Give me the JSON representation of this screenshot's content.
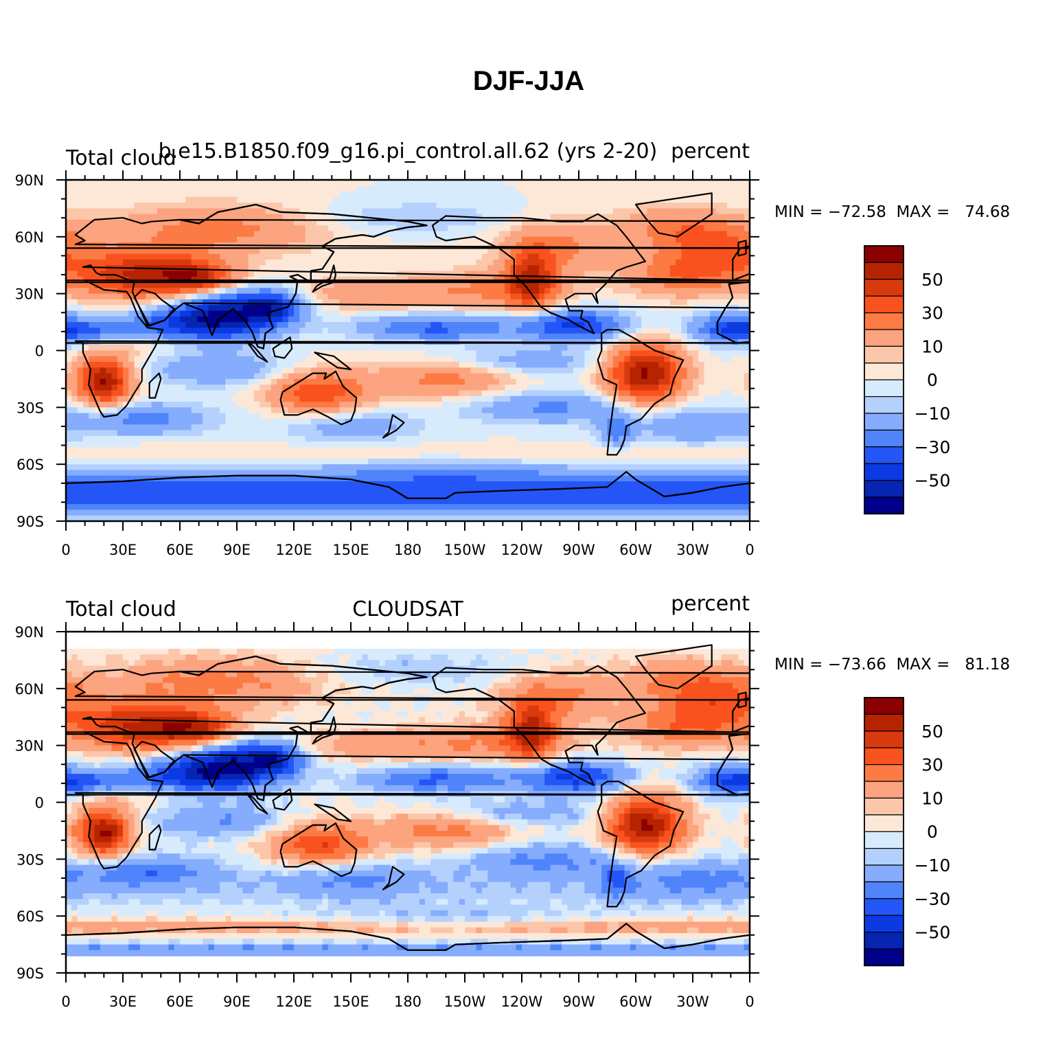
{
  "figure_title": "DJF-JJA",
  "panels": [
    {
      "left_title": "Total cloud",
      "center_title": "b.e15.B1850.f09_g16.pi_control.all.62 (yrs 2-20)",
      "right_title": "percent",
      "min_max_text": "MIN = −72.58  MAX =   74.68",
      "data_lat_range": [
        -90,
        90
      ]
    },
    {
      "left_title": "Total cloud",
      "center_title": "CLOUDSAT",
      "right_title": "percent",
      "min_max_text": "MIN = −73.66  MAX =   81.18",
      "data_lat_range": [
        -81,
        81
      ]
    }
  ],
  "lat_ticks": [
    "90N",
    "60N",
    "30N",
    "0",
    "30S",
    "60S",
    "90S"
  ],
  "lon_ticks": [
    "0",
    "30E",
    "60E",
    "90E",
    "120E",
    "150E",
    "180",
    "150W",
    "120W",
    "90W",
    "60W",
    "30W",
    "0"
  ],
  "colorbar": {
    "labels": [
      "50",
      "30",
      "10",
      "0",
      "−10",
      "−30",
      "−50"
    ],
    "colors": [
      "#8b0000",
      "#b62300",
      "#d83a0e",
      "#f9521e",
      "#fc7a44",
      "#fca37f",
      "#fbc6a9",
      "#fde8d8",
      "#d7ebfd",
      "#b4d0fd",
      "#85acfd",
      "#4f84fb",
      "#2455f6",
      "#0c3ae2",
      "#0525b2",
      "#00008a"
    ]
  },
  "chart_data": {
    "type": "heatmap",
    "title": "DJF-JJA",
    "units": "percent",
    "x_axis": "longitude",
    "y_axis": "latitude",
    "color_levels": [
      -60,
      -50,
      -40,
      -30,
      -20,
      -10,
      -5,
      0,
      5,
      10,
      20,
      30,
      40,
      50,
      60
    ],
    "maps": [
      {
        "name": "b.e15.B1850.f09_g16.pi_control.all.62 (yrs 2-20)",
        "min": -72.58,
        "max": 74.68
      },
      {
        "name": "CLOUDSAT",
        "min": -73.66,
        "max": 81.18
      }
    ]
  }
}
